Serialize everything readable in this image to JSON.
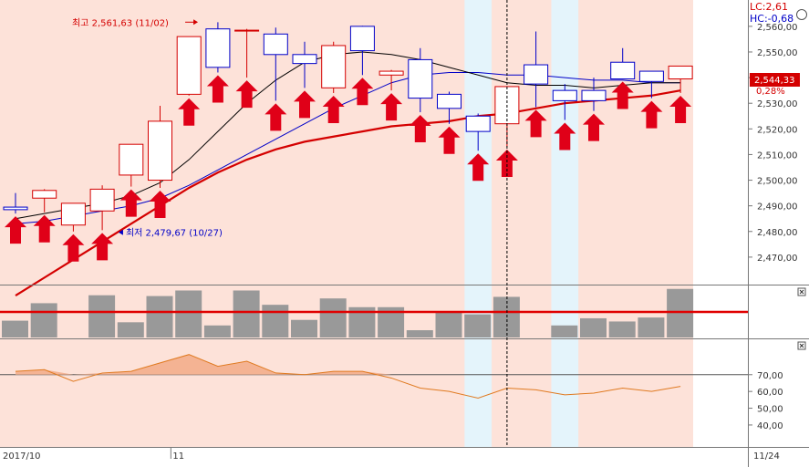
{
  "chart_data": {
    "type": "candlestick",
    "title": "",
    "price_axis": {
      "ylim": [
        2460,
        2566
      ],
      "ticks": [
        2470,
        2480,
        2490,
        2500,
        2510,
        2520,
        2530,
        2540,
        2550,
        2560
      ],
      "tick_labels": [
        "2,470,00",
        "2,480,00",
        "2,490,00",
        "2,500,00",
        "2,510,00",
        "2,520,00",
        "2,530,00",
        "2,540,00",
        "2,550,00",
        "2,560,00"
      ]
    },
    "candles": [
      {
        "o": 2489.5,
        "h": 2495.0,
        "l": 2487.0,
        "c": 2488.5
      },
      {
        "o": 2493.0,
        "h": 2496.5,
        "l": 2487.5,
        "c": 2496.0
      },
      {
        "o": 2482.5,
        "h": 2491.0,
        "l": 2480.0,
        "c": 2491.0
      },
      {
        "o": 2488.0,
        "h": 2498.0,
        "l": 2480.5,
        "c": 2496.5
      },
      {
        "o": 2502.0,
        "h": 2514.0,
        "l": 2497.5,
        "c": 2514.0
      },
      {
        "o": 2500.0,
        "h": 2529.0,
        "l": 2497.0,
        "c": 2523.0
      },
      {
        "o": 2533.5,
        "h": 2556.0,
        "l": 2533.0,
        "c": 2556.0
      },
      {
        "o": 2559.0,
        "h": 2561.6,
        "l": 2542.0,
        "c": 2544.0
      },
      {
        "o": 2558.5,
        "h": 2559.0,
        "l": 2540.0,
        "c": 2558.5
      },
      {
        "o": 2557.0,
        "h": 2559.5,
        "l": 2531.0,
        "c": 2549.0
      },
      {
        "o": 2549.0,
        "h": 2554.0,
        "l": 2536.0,
        "c": 2545.5
      },
      {
        "o": 2536.0,
        "h": 2554.0,
        "l": 2534.0,
        "c": 2552.5
      },
      {
        "o": 2560.0,
        "h": 2560.2,
        "l": 2541.0,
        "c": 2550.5
      },
      {
        "o": 2541.0,
        "h": 2543.0,
        "l": 2535.0,
        "c": 2542.5
      },
      {
        "o": 2547.0,
        "h": 2551.5,
        "l": 2526.5,
        "c": 2532.0
      },
      {
        "o": 2533.5,
        "h": 2534.5,
        "l": 2522.0,
        "c": 2528.0
      },
      {
        "o": 2525.0,
        "h": 2526.0,
        "l": 2511.5,
        "c": 2519.0
      },
      {
        "o": 2522.0,
        "h": 2536.5,
        "l": 2513.0,
        "c": 2536.5
      },
      {
        "o": 2545.0,
        "h": 2558.0,
        "l": 2528.5,
        "c": 2537.5
      },
      {
        "o": 2535.0,
        "h": 2537.5,
        "l": 2523.5,
        "c": 2531.0
      },
      {
        "o": 2535.0,
        "h": 2540.0,
        "l": 2527.0,
        "c": 2531.0
      },
      {
        "o": 2546.0,
        "h": 2551.5,
        "l": 2539.5,
        "c": 2539.5
      },
      {
        "o": 2542.5,
        "h": 2542.5,
        "l": 2532.0,
        "c": 2538.5
      },
      {
        "o": 2539.5,
        "h": 2544.5,
        "l": 2534.0,
        "c": 2544.5
      }
    ],
    "ma_black": [
      2485,
      2487,
      2489,
      2491,
      2494,
      2499,
      2508,
      2519,
      2530,
      2539,
      2546,
      2549,
      2550,
      2549,
      2547,
      2544,
      2541,
      2538,
      2537,
      2537,
      2536,
      2537,
      2538,
      2538
    ],
    "ma_blue": [
      2483,
      2484,
      2486,
      2488,
      2490,
      2493,
      2498,
      2504,
      2510,
      2516,
      2522,
      2528,
      2533,
      2538,
      2541,
      2542,
      2542,
      2541,
      2541,
      2540,
      2539,
      2539,
      2538,
      2538
    ],
    "ma_red": [
      2455,
      2462,
      2469,
      2476,
      2483,
      2490,
      2497,
      2503,
      2508,
      2512,
      2515,
      2517,
      2519,
      2521,
      2522,
      2523,
      2525,
      2526,
      2528,
      2530,
      2531,
      2532,
      2533,
      2535
    ],
    "arrows_below": [
      0,
      1,
      2,
      3,
      4,
      5,
      6,
      7,
      8,
      9,
      10,
      11,
      12,
      13,
      14,
      15,
      16,
      17,
      18,
      19,
      20,
      21,
      22,
      23
    ],
    "volume": {
      "values": [
        20,
        42,
        0,
        52,
        18,
        51,
        58,
        14,
        58,
        40,
        21,
        48,
        37,
        37,
        8,
        30,
        28,
        50,
        0,
        14,
        23,
        19,
        24,
        60
      ],
      "ylim": [
        0,
        62
      ],
      "reference_level": 31
    },
    "oscillator": {
      "values": [
        72,
        73,
        66,
        71,
        72,
        77,
        82,
        75,
        78,
        71,
        70,
        72,
        72,
        68,
        62,
        60,
        56,
        62,
        61,
        58,
        59,
        62,
        60,
        63
      ],
      "ylim": [
        28,
        90
      ],
      "ticks": [
        40,
        50,
        60,
        70
      ],
      "tick_labels": [
        "40,00",
        "50,00",
        "60,00",
        "70,00"
      ],
      "reference_level": 70
    },
    "shaded_columns": [
      16,
      19
    ],
    "crosshair_index": 17,
    "x_labels": [
      {
        "index": 0,
        "text": "2017/10"
      },
      {
        "index": 6,
        "text": "11"
      },
      {
        "index": 26,
        "text": "11/24"
      }
    ],
    "annotations": {
      "high": {
        "index": 7,
        "value": 2561.63,
        "text": "최고 2,561,63 (11/02)"
      },
      "low": {
        "index": 3,
        "value": 2479.67,
        "text": "최저 2,479,67 (10/27)"
      }
    },
    "info": {
      "lc": "LC:2,61",
      "hc": "HC:-0,68",
      "last_price": "2,544,33",
      "last_change": "0,28%"
    },
    "colors": {
      "up": "#d40000",
      "down": "#0000c8",
      "ma_black": "#000000",
      "ma_blue": "#0000c8",
      "ma_red": "#d40000",
      "bg_main": "#fde2d9",
      "bg_shade": "#e4f4fb",
      "arrow": "#e00018",
      "volume_bar": "#999999",
      "oscillator": "#e07a20"
    }
  }
}
